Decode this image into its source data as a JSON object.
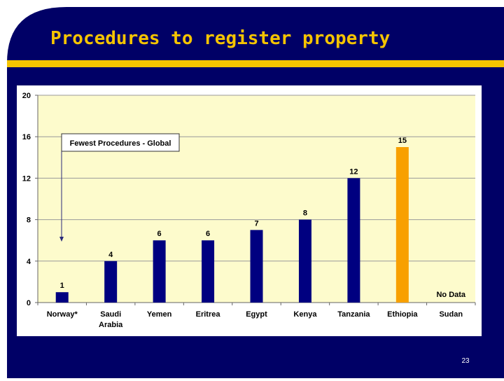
{
  "slide": {
    "title": "Procedures to register property",
    "page_number": "23"
  },
  "colors": {
    "background": "#000066",
    "title": "#f5c400",
    "accent_bar": "#f5c400",
    "plot_background": "#fdfbcc",
    "bar_default": "#000080",
    "bar_highlight": "#f8a000"
  },
  "chart_data": {
    "type": "bar",
    "categories": [
      "Norway*",
      "Saudi Arabia",
      "Yemen",
      "Eritrea",
      "Egypt",
      "Kenya",
      "Tanzania",
      "Ethiopia",
      "Sudan"
    ],
    "values": [
      1,
      4,
      6,
      6,
      7,
      8,
      12,
      15,
      null
    ],
    "data_labels": [
      "1",
      "4",
      "6",
      "6",
      "7",
      "8",
      "12",
      "15",
      "No Data"
    ],
    "highlight_category": "Ethiopia",
    "ylim": [
      0,
      20
    ],
    "yticks": [
      0,
      4,
      8,
      12,
      16,
      20
    ],
    "grid": true,
    "annotation": {
      "text": "Fewest Procedures - Global",
      "points_to": "Norway*"
    }
  }
}
